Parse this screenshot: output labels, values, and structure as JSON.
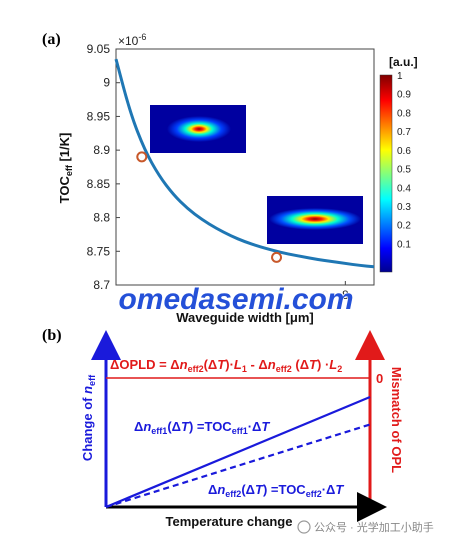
{
  "panel_labels": {
    "a": "(a)",
    "b": "(b)"
  },
  "chart_data": [
    {
      "type": "line",
      "panel": "(a)",
      "ylabel_main": "TOC",
      "ylabel_sub": "eff",
      "ylabel_unit": " [1/K]",
      "xlabel": "Waveguide width [μm]",
      "y_multiplier": "×10",
      "y_multiplier_exp": "-6",
      "ylim": [
        8.7,
        9.05
      ],
      "xlim": [
        0,
        9
      ],
      "y_ticks": [
        8.7,
        8.75,
        8.8,
        8.85,
        8.9,
        8.95,
        9.0,
        9.05
      ],
      "y_tick_labels": [
        "8.7",
        "8.75",
        "8.8",
        "8.85",
        "8.9",
        "8.95",
        "9",
        "9.05"
      ],
      "x_ticks": [
        8
      ],
      "x_tick_labels": [
        "8"
      ],
      "series_color": "#1f77b4",
      "curve": {
        "x": [
          0,
          0.5,
          1,
          1.5,
          2,
          2.5,
          3,
          3.5,
          4,
          4.5,
          5,
          5.5,
          6,
          6.5,
          7,
          7.5,
          8,
          8.5,
          9
        ],
        "y": [
          9.035,
          8.955,
          8.9,
          8.862,
          8.834,
          8.813,
          8.797,
          8.784,
          8.773,
          8.764,
          8.757,
          8.751,
          8.746,
          8.742,
          8.738,
          8.735,
          8.732,
          8.729,
          8.727
        ]
      },
      "markers": [
        {
          "x": 0.9,
          "y": 8.89
        },
        {
          "x": 5.6,
          "y": 8.741
        }
      ],
      "marker_color": "#c8582a",
      "colorbar": {
        "title": "[a.u.]",
        "ticks": [
          "1",
          "0.9",
          "0.8",
          "0.7",
          "0.6",
          "0.5",
          "0.4",
          "0.3",
          "0.2",
          "0.1"
        ]
      }
    },
    {
      "type": "line",
      "panel": "(b)",
      "xlabel": "Temperature change",
      "ylabel_left_main": "Change of ",
      "ylabel_left_n": "n",
      "ylabel_left_sub": "eff",
      "ylabel_right": "Mismatch of OPL",
      "right_zero": "0",
      "left_axis_color": "#1a1adb",
      "right_axis_color": "#e11a1a",
      "equation_opld": "ΔOPLD = Δn<sub>eff2</sub>(ΔT)·L<sub>1</sub> - Δn<sub>eff2</sub> (ΔT) ·L<sub>2</sub>",
      "equation_neff1": "Δn<sub>eff1</sub>(ΔT) =TOC<sub>eff1</sub>·ΔT",
      "equation_neff2": "Δn<sub>eff2</sub>(ΔT) =TOC<sub>eff2</sub>·ΔT",
      "series": [
        {
          "name": "Δneff1",
          "style": "solid",
          "x": [
            0,
            1
          ],
          "y": [
            0,
            1
          ]
        },
        {
          "name": "Δneff2",
          "style": "dashed",
          "x": [
            0,
            1
          ],
          "y": [
            0,
            0.75
          ]
        }
      ],
      "zero_line": {
        "y": 1.78
      }
    }
  ],
  "watermark_text": "omedasemi.com",
  "footer_credit": "公众号 · 光学加工小助手"
}
